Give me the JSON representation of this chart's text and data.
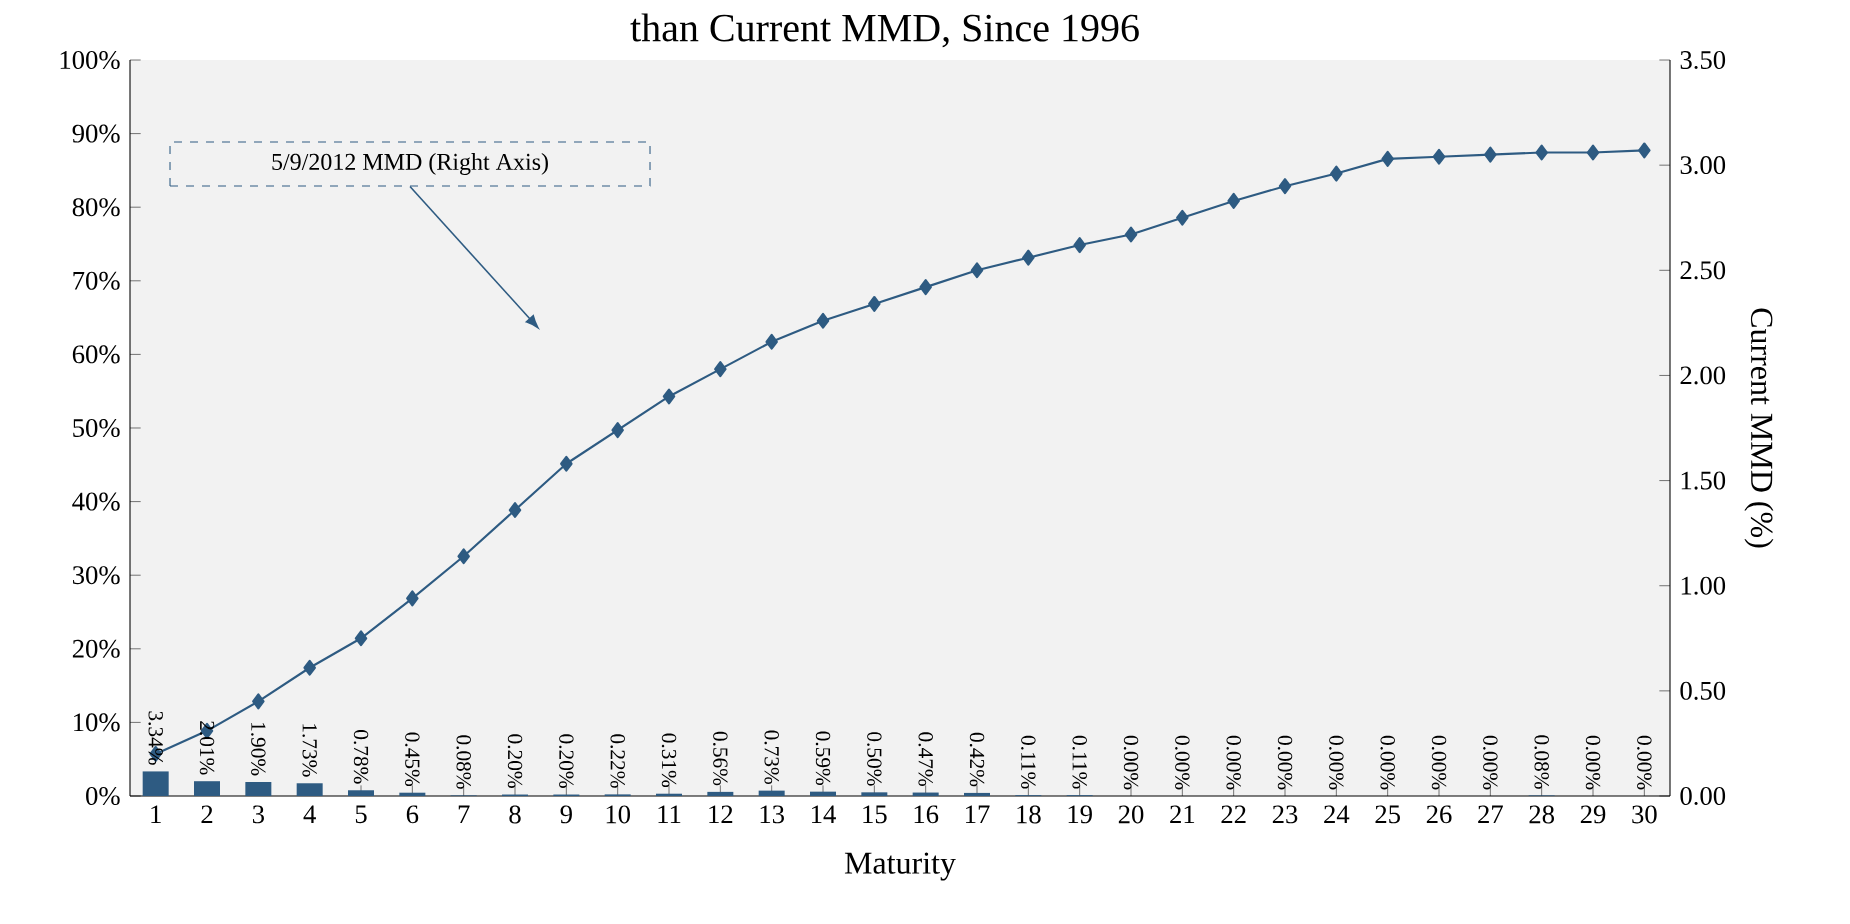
{
  "chart_data": {
    "type": "bar",
    "title": "than Current MMD, Since 1996",
    "xlabel": "Maturity",
    "y2label": "Current MMD (%)",
    "categories": [
      "1",
      "2",
      "3",
      "4",
      "5",
      "6",
      "7",
      "8",
      "9",
      "10",
      "11",
      "12",
      "13",
      "14",
      "15",
      "16",
      "17",
      "18",
      "19",
      "20",
      "21",
      "22",
      "23",
      "24",
      "25",
      "26",
      "27",
      "28",
      "29",
      "30"
    ],
    "series": [
      {
        "color": "#2e5b82",
        "values": [
          3.34,
          2.01,
          1.9,
          1.73,
          0.78,
          0.45,
          0.08,
          0.2,
          0.2,
          0.22,
          0.31,
          0.56,
          0.73,
          0.59,
          0.5,
          0.47,
          0.42,
          0.11,
          0.11,
          0.0,
          0.0,
          0.0,
          0.0,
          0.0,
          0.0,
          0.0,
          0.0,
          0.08,
          0.0,
          0.0
        ],
        "value_labels": [
          "3.34%",
          "2.01%",
          "1.90%",
          "1.73%",
          "0.78%",
          "0.45%",
          "0.08%",
          "0.20%",
          "0.20%",
          "0.22%",
          "0.31%",
          "0.56%",
          "0.73%",
          "0.59%",
          "0.50%",
          "0.47%",
          "0.42%",
          "0.11%",
          "0.11%",
          "0.00%",
          "0.00%",
          "0.00%",
          "0.00%",
          "0.00%",
          "0.00%",
          "0.00%",
          "0.00%",
          "0.08%",
          "0.00%",
          "0.00%"
        ]
      },
      {
        "type": "line",
        "axis": "y2",
        "color": "#2e5b82",
        "marker": "diamond",
        "line_style": "solid",
        "values": [
          0.2,
          0.31,
          0.45,
          0.61,
          0.75,
          0.94,
          1.14,
          1.36,
          1.58,
          1.74,
          1.9,
          2.03,
          2.16,
          2.26,
          2.34,
          2.42,
          2.5,
          2.56,
          2.62,
          2.67,
          2.75,
          2.83,
          2.9,
          2.96,
          3.03,
          3.04,
          3.05,
          3.06,
          3.06,
          3.07
        ]
      }
    ],
    "ylim": [
      0,
      100
    ],
    "yticks": [
      {
        "value": 0,
        "label": "0%"
      },
      {
        "value": 10,
        "label": "10%"
      },
      {
        "value": 20,
        "label": "20%"
      },
      {
        "value": 30,
        "label": "30%"
      },
      {
        "value": 40,
        "label": "40%"
      },
      {
        "value": 50,
        "label": "50%"
      },
      {
        "value": 60,
        "label": "60%"
      },
      {
        "value": 70,
        "label": "70%"
      },
      {
        "value": 80,
        "label": "80%"
      },
      {
        "value": 90,
        "label": "90%"
      },
      {
        "value": 100,
        "label": "100%"
      }
    ],
    "y2lim": [
      0,
      3.5
    ],
    "y2ticks": [
      {
        "value": 0,
        "label": "0.00"
      },
      {
        "value": 0.5,
        "label": "0.50"
      },
      {
        "value": 1,
        "label": "1.00"
      },
      {
        "value": 1.5,
        "label": "1.50"
      },
      {
        "value": 2,
        "label": "2.00"
      },
      {
        "value": 2.5,
        "label": "2.50"
      },
      {
        "value": 3,
        "label": "3.00"
      },
      {
        "value": 3.5,
        "label": "3.50"
      }
    ],
    "annotations": [
      "5/9/2012 MMD (Right Axis)"
    ],
    "grid": false,
    "legend": false
  }
}
